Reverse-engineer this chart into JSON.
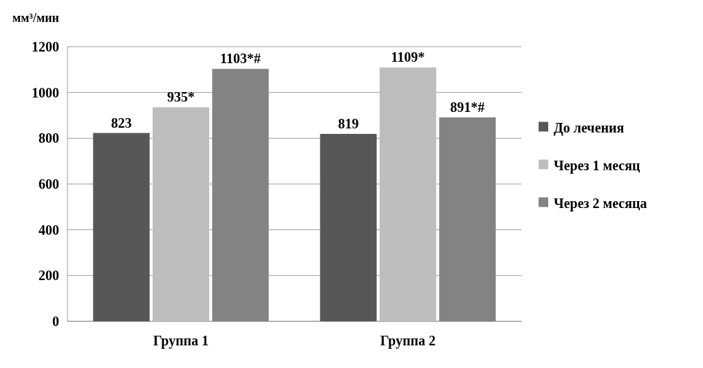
{
  "chart_data": {
    "type": "bar",
    "ylabel": "мм³/мин",
    "categories": [
      "Группа 1",
      "Группа 2"
    ],
    "series": [
      {
        "name": "До лечения",
        "color": "#575757",
        "values": [
          823,
          819
        ],
        "value_labels": [
          "823",
          "819"
        ]
      },
      {
        "name": "Через 1 месяц",
        "color": "#bdbdbd",
        "values": [
          935,
          1109
        ],
        "value_labels": [
          "935*",
          "1109*"
        ]
      },
      {
        "name": "Через 2 месяца",
        "color": "#838383",
        "values": [
          1103,
          891
        ],
        "value_labels": [
          "1103*#",
          "891*#"
        ]
      }
    ],
    "ylim": [
      0,
      1200
    ],
    "yticks": [
      0,
      200,
      400,
      600,
      800,
      1000,
      1200
    ],
    "grid": "y",
    "legend": "right"
  }
}
